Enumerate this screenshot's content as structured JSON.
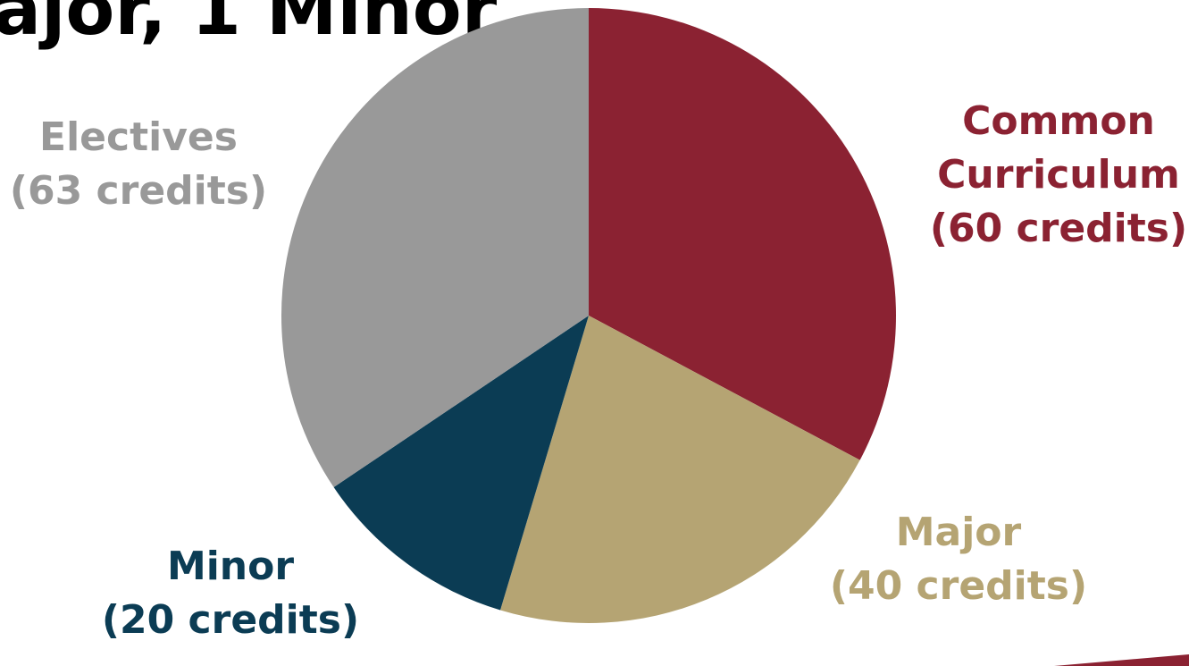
{
  "slide": {
    "title_fragment": "ajor, 1 Minor"
  },
  "chart_data": {
    "type": "pie",
    "start": "12 o'clock",
    "direction": "clockwise",
    "slices": [
      {
        "label_lines": [
          "Common",
          "Curriculum",
          "(60 credits)"
        ],
        "value": 60,
        "color": "#8b2232"
      },
      {
        "label_lines": [
          "Major",
          "(40 credits)"
        ],
        "value": 40,
        "color": "#b5a473"
      },
      {
        "label_lines": [
          "Minor",
          "(20 credits)"
        ],
        "value": 20,
        "color": "#0b3c54"
      },
      {
        "label_lines": [
          "Electives",
          "(63 credits)"
        ],
        "value": 63,
        "color": "#999999"
      }
    ]
  }
}
